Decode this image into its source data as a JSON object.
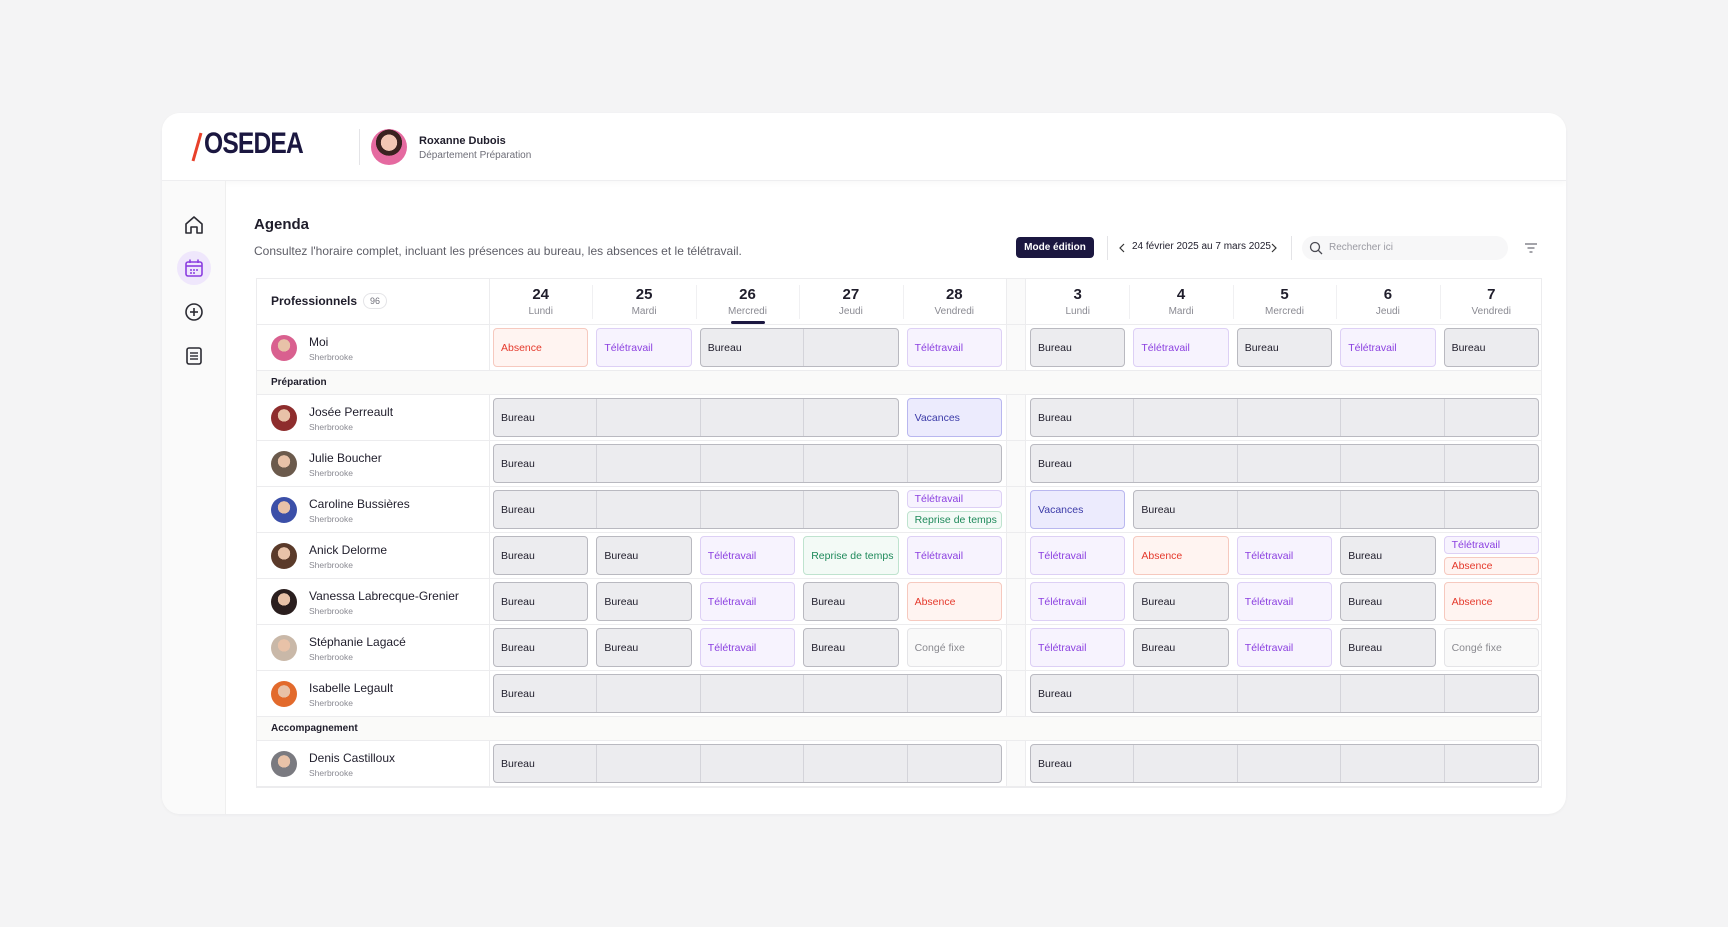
{
  "header": {
    "logo": "OSEDEA",
    "user_name": "Roxanne Dubois",
    "user_department": "Département Préparation"
  },
  "page": {
    "title": "Agenda",
    "description": "Consultez l'horaire complet, incluant les présences au bureau, les absences et le télétravail.",
    "edit_button": "Mode édition",
    "date_range": "24 février 2025 au 7 mars 2025",
    "search_placeholder": "Rechercher ici"
  },
  "table": {
    "column_header": "Professionnels",
    "count": "96",
    "weeks": [
      [
        {
          "number": "24",
          "day": "Lundi"
        },
        {
          "number": "25",
          "day": "Mardi"
        },
        {
          "number": "26",
          "day": "Mercredi",
          "current": true
        },
        {
          "number": "27",
          "day": "Jeudi"
        },
        {
          "number": "28",
          "day": "Vendredi"
        }
      ],
      [
        {
          "number": "3",
          "day": "Lundi"
        },
        {
          "number": "4",
          "day": "Mardi"
        },
        {
          "number": "5",
          "day": "Mercredi"
        },
        {
          "number": "6",
          "day": "Jeudi"
        },
        {
          "number": "7",
          "day": "Vendredi"
        }
      ]
    ],
    "styles": {
      "Bureau": {
        "color": "#1f1d2b",
        "background": "#ececef",
        "border": "#b9b9c0"
      },
      "Télétravail": {
        "color": "#8b3fe0",
        "background": "#f7f3fe",
        "border": "#ddd0f5"
      },
      "Absence": {
        "color": "#e5392c",
        "background": "#fff4f1",
        "border": "#f6c9bf"
      },
      "Vacances": {
        "color": "#3b3aa8",
        "background": "#ecebfd",
        "border": "#b9b7ef"
      },
      "Reprise de temps": {
        "color": "#1f8a5b",
        "background": "#f3faf6",
        "border": "#bfe3cf"
      },
      "Congé fixe": {
        "color": "#8a8a90",
        "background": "#f9f9f9",
        "border": "#e4e4e7"
      }
    },
    "rows": [
      {
        "name": "Moi",
        "location": "Sherbrooke",
        "avatar": "#d9608f",
        "weeks": [
          [
            "Absence",
            "Télétravail",
            "Bureau",
            null,
            "Télétravail"
          ],
          [
            "Bureau",
            "Télétravail",
            "Bureau",
            "Télétravail",
            "Bureau"
          ]
        ]
      },
      {
        "section": "Préparation"
      },
      {
        "name": "Josée Perreault",
        "location": "Sherbrooke",
        "avatar": "#8e2d2d",
        "weeks": [
          [
            "Bureau",
            null,
            null,
            null,
            "Vacances"
          ],
          [
            "Bureau",
            null,
            null,
            null,
            null
          ]
        ]
      },
      {
        "name": "Julie Boucher",
        "location": "Sherbrooke",
        "avatar": "#6b5a4c",
        "weeks": [
          [
            "Bureau",
            null,
            null,
            null,
            null
          ],
          [
            "Bureau",
            null,
            null,
            null,
            null
          ]
        ]
      },
      {
        "name": "Caroline Bussières",
        "location": "Sherbrooke",
        "avatar": "#3b4fa8",
        "weeks": [
          [
            "Bureau",
            null,
            null,
            null,
            [
              "Télétravail",
              "Reprise de temps"
            ]
          ],
          [
            "Vacances",
            "Bureau",
            null,
            null,
            null
          ]
        ]
      },
      {
        "name": "Anick Delorme",
        "location": "Sherbrooke",
        "avatar": "#5a3a2a",
        "weeks": [
          [
            "Bureau",
            "Bureau",
            "Télétravail",
            "Reprise de temps",
            "Télétravail"
          ],
          [
            "Télétravail",
            "Absence",
            "Télétravail",
            "Bureau",
            [
              "Télétravail",
              "Absence"
            ]
          ]
        ]
      },
      {
        "name": "Vanessa Labrecque-Grenier",
        "location": "Sherbrooke",
        "avatar": "#2a1e1e",
        "weeks": [
          [
            "Bureau",
            "Bureau",
            "Télétravail",
            "Bureau",
            "Absence"
          ],
          [
            "Télétravail",
            "Bureau",
            "Télétravail",
            "Bureau",
            "Absence"
          ]
        ]
      },
      {
        "name": "Stéphanie Lagacé",
        "location": "Sherbrooke",
        "avatar": "#c9b8a8",
        "weeks": [
          [
            "Bureau",
            "Bureau",
            "Télétravail",
            "Bureau",
            "Congé fixe"
          ],
          [
            "Télétravail",
            "Bureau",
            "Télétravail",
            "Bureau",
            "Congé fixe"
          ]
        ]
      },
      {
        "name": "Isabelle Legault",
        "location": "Sherbrooke",
        "avatar": "#e26a2c",
        "weeks": [
          [
            "Bureau",
            null,
            null,
            null,
            null
          ],
          [
            "Bureau",
            null,
            null,
            null,
            null
          ]
        ]
      },
      {
        "section": "Accompagnement"
      },
      {
        "name": "Denis Castilloux",
        "location": "Sherbrooke",
        "avatar": "#7a7a80",
        "weeks": [
          [
            "Bureau",
            null,
            null,
            null,
            null
          ],
          [
            "Bureau",
            null,
            null,
            null,
            null
          ]
        ]
      }
    ]
  }
}
